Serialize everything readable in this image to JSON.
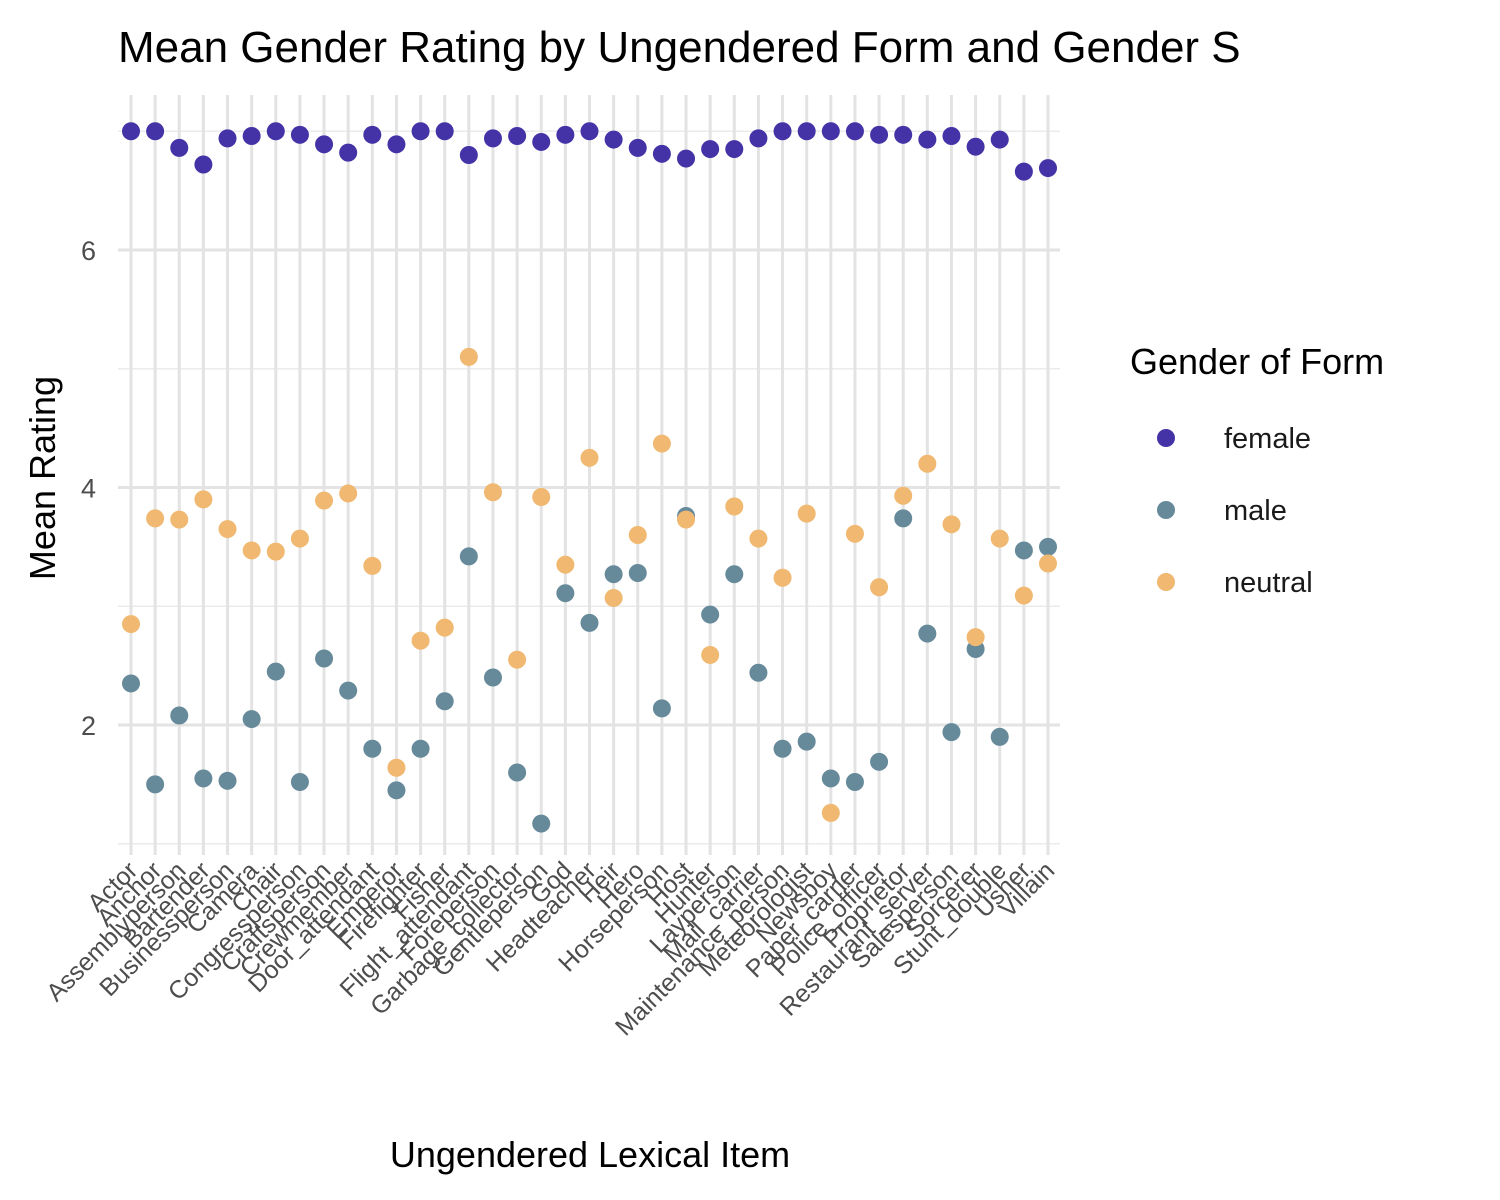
{
  "chart_data": {
    "type": "scatter",
    "title": "Mean Gender Rating by Ungendered Form and Gender S",
    "xlabel": "Ungendered Lexical Item",
    "ylabel": "Mean Rating",
    "ylim": [
      1,
      7.2
    ],
    "yticks": [
      2,
      4,
      6
    ],
    "grid": true,
    "legend": {
      "title": "Gender of Form",
      "placement": "right"
    },
    "categories": [
      "Actor",
      "Anchor",
      "Assemblyperson",
      "Bartender",
      "Businessperson",
      "Camera",
      "Chair",
      "Congressperson",
      "Craftsperson",
      "Crewmember",
      "Door_attendant",
      "Emperor",
      "Firefighter",
      "Fisher",
      "Flight_attendant",
      "Foreperson",
      "Garbage_collector",
      "Gentleperson",
      "God",
      "Headteacher",
      "Heir",
      "Hero",
      "Horseperson",
      "Host",
      "Hunter",
      "Layperson",
      "Mail_carrier",
      "Maintenance_person",
      "Meteorologist",
      "Newsboy",
      "Paper_carrier",
      "Police_officer",
      "Proprietor",
      "Restaurant_server",
      "Salesperson",
      "Sorcerer",
      "Stunt_double",
      "Usher",
      "Villain"
    ],
    "series": [
      {
        "name": "female",
        "color": "#4433A6",
        "values": [
          7.0,
          7.0,
          6.86,
          6.72,
          6.94,
          6.96,
          7.0,
          6.97,
          6.89,
          6.82,
          6.97,
          6.89,
          7.0,
          7.0,
          6.8,
          6.94,
          6.96,
          6.91,
          6.97,
          7.0,
          6.93,
          6.86,
          6.81,
          6.77,
          6.85,
          6.85,
          6.94,
          7.0,
          7.0,
          7.0,
          7.0,
          6.97,
          6.97,
          6.93,
          6.96,
          6.87,
          6.93,
          6.66,
          6.69
        ]
      },
      {
        "name": "male",
        "color": "#678A9B",
        "values": [
          2.35,
          1.5,
          2.08,
          1.55,
          1.53,
          2.05,
          2.45,
          1.52,
          2.56,
          2.29,
          1.8,
          1.45,
          1.8,
          2.2,
          3.42,
          2.4,
          1.6,
          1.17,
          3.11,
          2.86,
          3.27,
          3.28,
          2.14,
          3.76,
          2.93,
          3.27,
          2.44,
          1.8,
          1.86,
          1.55,
          1.52,
          1.69,
          3.74,
          2.77,
          1.94,
          2.64,
          1.9,
          3.47,
          3.5
        ]
      },
      {
        "name": "neutral",
        "color": "#F0B870",
        "values": [
          2.85,
          3.74,
          3.73,
          3.9,
          3.65,
          3.47,
          3.46,
          3.57,
          3.89,
          3.95,
          3.34,
          1.64,
          2.71,
          2.82,
          5.1,
          3.96,
          2.55,
          3.92,
          3.35,
          4.25,
          3.07,
          3.6,
          4.37,
          3.73,
          2.59,
          3.84,
          3.57,
          3.24,
          3.78,
          1.26,
          3.61,
          3.16,
          3.93,
          4.2,
          3.69,
          2.74,
          3.57,
          3.09,
          3.36
        ]
      }
    ]
  }
}
